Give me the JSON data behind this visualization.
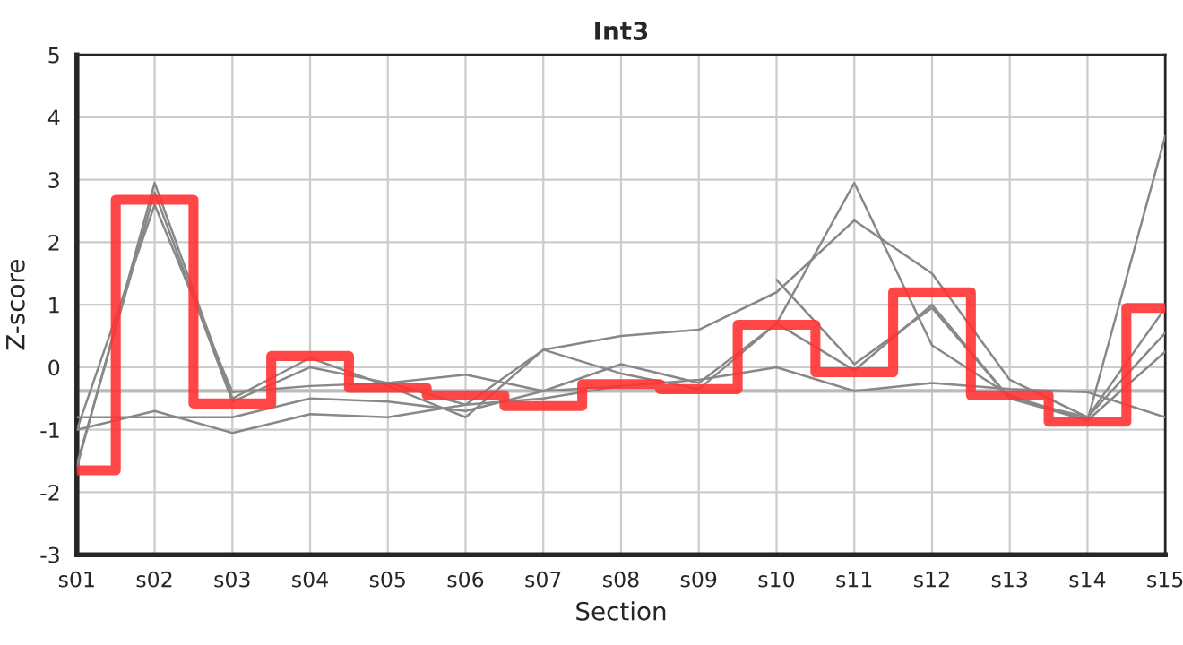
{
  "chart_data": {
    "type": "line",
    "title": "Int3",
    "xlabel": "Section",
    "ylabel": "Z-score",
    "categories": [
      "s01",
      "s02",
      "s03",
      "s04",
      "s05",
      "s06",
      "s07",
      "s08",
      "s09",
      "s10",
      "s11",
      "s12",
      "s13",
      "s14",
      "s15"
    ],
    "series": [
      {
        "color": "#888888",
        "values": [
          -1.6,
          2.95,
          -0.5,
          0.15,
          -0.3,
          -0.8,
          0.28,
          -0.1,
          -0.35,
          0.7,
          2.95,
          0.35,
          -0.45,
          -0.85,
          3.7
        ]
      },
      {
        "color": "#888888",
        "values": [
          -1.55,
          2.8,
          -0.55,
          0.0,
          -0.25,
          -0.6,
          0.28,
          0.5,
          0.6,
          1.2,
          2.35,
          1.5,
          -0.2,
          -0.8,
          0.95
        ]
      },
      {
        "color": "#888888",
        "values": [
          -1.0,
          -0.7,
          -1.05,
          -0.75,
          -0.8,
          -0.6,
          -0.5,
          -0.3,
          -0.2,
          0.0,
          -0.38,
          -0.25,
          -0.35,
          -0.4,
          -0.8
        ]
      },
      {
        "color": "#888888",
        "values": [
          -0.8,
          -0.8,
          -0.8,
          -0.5,
          -0.55,
          -0.7,
          -0.38,
          0.05,
          -0.25,
          0.7,
          -0.05,
          1.0,
          -0.5,
          -0.8,
          0.55
        ]
      },
      {
        "color": "#888888",
        "values": [
          -1.0,
          2.6,
          -0.4,
          -0.3,
          -0.25,
          -0.12,
          -0.38,
          -0.3,
          null,
          1.4,
          0.05,
          0.95,
          -0.5,
          -0.85,
          0.25
        ]
      },
      {
        "type": "step",
        "color": "#ff3333",
        "values": [
          -1.65,
          2.68,
          -0.58,
          0.18,
          -0.33,
          -0.45,
          -0.62,
          -0.27,
          -0.35,
          0.68,
          -0.08,
          1.2,
          -0.45,
          -0.87,
          0.95
        ]
      }
    ],
    "ref_lines": [
      {
        "axis": "y",
        "value": -0.38,
        "color": "#bbbbbb"
      }
    ],
    "ylim": [
      -3,
      5
    ],
    "yticks": [
      -3,
      -2,
      -1,
      0,
      1,
      2,
      3,
      4,
      5
    ],
    "grid": true,
    "marker": "none",
    "line_style": "solid"
  }
}
